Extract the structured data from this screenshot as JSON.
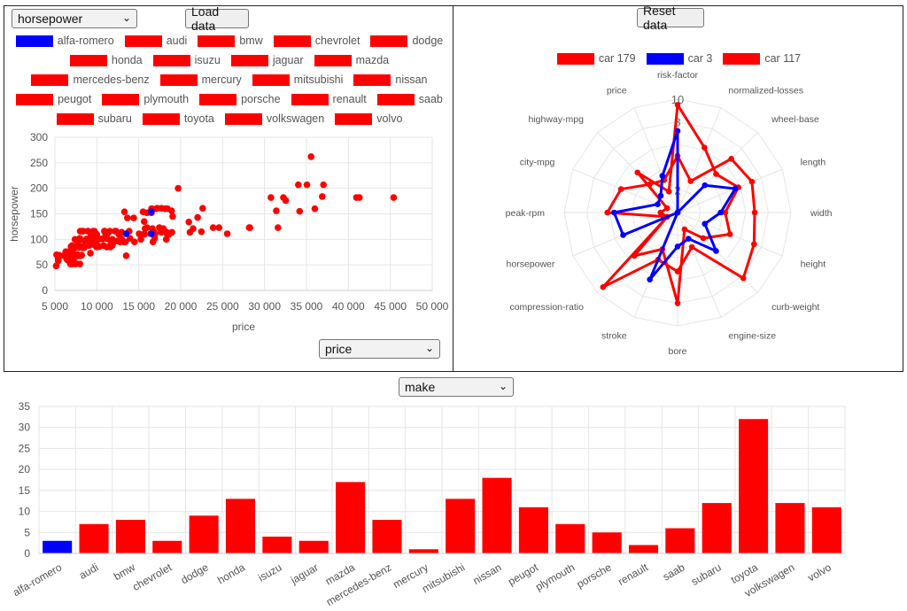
{
  "scatter_panel": {
    "y_select": "horsepower",
    "x_select": "price",
    "load_button": "Load data"
  },
  "radar_panel": {
    "reset_button": "Reset data"
  },
  "bar_panel": {
    "select": "make"
  },
  "colors": {
    "highlight": "#0000ff",
    "default": "#ff0000",
    "grid": "#e6e6e6"
  },
  "icons": {
    "dropdown": "chevron-down-icon"
  },
  "chart_data": [
    {
      "type": "scatter",
      "xlabel": "price",
      "ylabel": "horsepower",
      "xlim": [
        5000,
        50000
      ],
      "ylim": [
        0,
        300
      ],
      "xticks": [
        "5 000",
        "10 000",
        "15 000",
        "20 000",
        "25 000",
        "30 000",
        "35 000",
        "40 000",
        "45 000",
        "50 000"
      ],
      "yticks": [
        "0",
        "50",
        "100",
        "150",
        "200",
        "250",
        "300"
      ],
      "legend": [
        {
          "name": "alfa-romero",
          "color": "#0000ff"
        },
        {
          "name": "audi",
          "color": "#ff0000"
        },
        {
          "name": "bmw",
          "color": "#ff0000"
        },
        {
          "name": "chevrolet",
          "color": "#ff0000"
        },
        {
          "name": "dodge",
          "color": "#ff0000"
        },
        {
          "name": "honda",
          "color": "#ff0000"
        },
        {
          "name": "isuzu",
          "color": "#ff0000"
        },
        {
          "name": "jaguar",
          "color": "#ff0000"
        },
        {
          "name": "mazda",
          "color": "#ff0000"
        },
        {
          "name": "mercedes-benz",
          "color": "#ff0000"
        },
        {
          "name": "mercury",
          "color": "#ff0000"
        },
        {
          "name": "mitsubishi",
          "color": "#ff0000"
        },
        {
          "name": "nissan",
          "color": "#ff0000"
        },
        {
          "name": "peugot",
          "color": "#ff0000"
        },
        {
          "name": "plymouth",
          "color": "#ff0000"
        },
        {
          "name": "porsche",
          "color": "#ff0000"
        },
        {
          "name": "renault",
          "color": "#ff0000"
        },
        {
          "name": "saab",
          "color": "#ff0000"
        },
        {
          "name": "subaru",
          "color": "#ff0000"
        },
        {
          "name": "toyota",
          "color": "#ff0000"
        },
        {
          "name": "volkswagen",
          "color": "#ff0000"
        },
        {
          "name": "volvo",
          "color": "#ff0000"
        }
      ],
      "series": [
        {
          "name": "alfa-romero",
          "color": "#0000ff",
          "points": [
            [
              13495,
              111
            ],
            [
              16500,
              111
            ],
            [
              16500,
              154
            ]
          ]
        },
        {
          "name": "others",
          "color": "#ff0000",
          "points": [
            [
              5151,
              48
            ],
            [
              5195,
              70
            ],
            [
              5348,
              68
            ],
            [
              5389,
              62
            ],
            [
              5399,
              58
            ],
            [
              5499,
              69
            ],
            [
              5572,
              68
            ],
            [
              6095,
              68
            ],
            [
              6189,
              70
            ],
            [
              6229,
              68
            ],
            [
              6295,
              76
            ],
            [
              6338,
              70
            ],
            [
              6377,
              62
            ],
            [
              6479,
              60
            ],
            [
              6488,
              69
            ],
            [
              6529,
              70
            ],
            [
              6575,
              68
            ],
            [
              6649,
              60
            ],
            [
              6669,
              76
            ],
            [
              6692,
              69
            ],
            [
              6695,
              62
            ],
            [
              6785,
              70
            ],
            [
              6795,
              55
            ],
            [
              6849,
              52
            ],
            [
              6855,
              70
            ],
            [
              6918,
              86
            ],
            [
              6938,
              73
            ],
            [
              6989,
              58
            ],
            [
              7053,
              88
            ],
            [
              7099,
              52
            ],
            [
              7126,
              72
            ],
            [
              7129,
              55
            ],
            [
              7198,
              62
            ],
            [
              7295,
              70
            ],
            [
              7299,
              82
            ],
            [
              7349,
              55
            ],
            [
              7395,
              100
            ],
            [
              7463,
              69
            ],
            [
              7499,
              52
            ],
            [
              7609,
              88
            ],
            [
              7689,
              70
            ],
            [
              7738,
              90
            ],
            [
              7775,
              68
            ],
            [
              7788,
              97
            ],
            [
              7799,
              84
            ],
            [
              7895,
              85
            ],
            [
              7898,
              101
            ],
            [
              7957,
              102
            ],
            [
              7975,
              52
            ],
            [
              7995,
              68
            ],
            [
              8013,
              116
            ],
            [
              8058,
              100
            ],
            [
              8189,
              86
            ],
            [
              8195,
              69
            ],
            [
              8238,
              84
            ],
            [
              8249,
              116
            ],
            [
              8358,
              116
            ],
            [
              8449,
              84
            ],
            [
              8495,
              85
            ],
            [
              8499,
              84
            ],
            [
              8558,
              97
            ],
            [
              8778,
              101
            ],
            [
              8845,
              100
            ],
            [
              8921,
              116
            ],
            [
              8948,
              116
            ],
            [
              9095,
              88
            ],
            [
              9233,
              73
            ],
            [
              9258,
              97
            ],
            [
              9279,
              101
            ],
            [
              9298,
              110
            ],
            [
              9495,
              101
            ],
            [
              9538,
              90
            ],
            [
              9549,
              116
            ],
            [
              9639,
              97
            ],
            [
              9720,
              116
            ],
            [
              9895,
              100
            ],
            [
              9960,
              85
            ],
            [
              9980,
              90
            ],
            [
              9988,
              110
            ],
            [
              9989,
              101
            ],
            [
              10198,
              86
            ],
            [
              10245,
              101
            ],
            [
              10295,
              86
            ],
            [
              10345,
              101
            ],
            [
              10595,
              101
            ],
            [
              10698,
              101
            ],
            [
              10795,
              88
            ],
            [
              10898,
              116
            ],
            [
              10945,
              116
            ],
            [
              11048,
              110
            ],
            [
              11199,
              85
            ],
            [
              11245,
              101
            ],
            [
              11259,
              111
            ],
            [
              11549,
              116
            ],
            [
              11595,
              85
            ],
            [
              11694,
              92
            ],
            [
              11845,
              88
            ],
            [
              11850,
              100
            ],
            [
              11900,
              92
            ],
            [
              12170,
              116
            ],
            [
              12290,
              116
            ],
            [
              12440,
              97
            ],
            [
              12629,
              110
            ],
            [
              12764,
              95
            ],
            [
              12940,
              114
            ],
            [
              12945,
              101
            ],
            [
              12964,
              114
            ],
            [
              13200,
              95
            ],
            [
              13295,
              154
            ],
            [
              13415,
              95
            ],
            [
              13499,
              68
            ],
            [
              13645,
              142
            ],
            [
              13860,
              116
            ],
            [
              13950,
              102
            ],
            [
              14399,
              142
            ],
            [
              14489,
              95
            ],
            [
              15040,
              111
            ],
            [
              15250,
              100
            ],
            [
              15510,
              154
            ],
            [
              15580,
              110
            ],
            [
              15645,
              135
            ],
            [
              15690,
              110
            ],
            [
              15750,
              121
            ],
            [
              15985,
              123
            ],
            [
              15998,
              152
            ],
            [
              16430,
              111
            ],
            [
              16503,
              152
            ],
            [
              16515,
              160
            ],
            [
              16558,
              160
            ],
            [
              16630,
              121
            ],
            [
              16695,
              95
            ],
            [
              16845,
              114
            ],
            [
              16900,
              102
            ],
            [
              16925,
              110
            ],
            [
              17075,
              160
            ],
            [
              17199,
              161
            ],
            [
              17450,
              123
            ],
            [
              17669,
              114
            ],
            [
              17710,
              161
            ],
            [
              17950,
              121
            ],
            [
              18150,
              160
            ],
            [
              18280,
              100
            ],
            [
              18344,
              114
            ],
            [
              18399,
              110
            ],
            [
              18420,
              160
            ],
            [
              18620,
              110
            ],
            [
              18920,
              156
            ],
            [
              18950,
              114
            ],
            [
              19045,
              145
            ],
            [
              19699,
              200
            ],
            [
              20970,
              134
            ],
            [
              21105,
              114
            ],
            [
              21485,
              121
            ],
            [
              22018,
              143
            ],
            [
              22470,
              115
            ],
            [
              22625,
              161
            ],
            [
              23875,
              123
            ],
            [
              24565,
              123
            ],
            [
              25552,
              111
            ],
            [
              28176,
              123
            ],
            [
              28248,
              123
            ],
            [
              30760,
              182
            ],
            [
              31400,
              156
            ],
            [
              31600,
              123
            ],
            [
              32250,
              182
            ],
            [
              32528,
              176
            ],
            [
              34028,
              207
            ],
            [
              34184,
              155
            ],
            [
              35056,
              207
            ],
            [
              35550,
              262
            ],
            [
              36000,
              160
            ],
            [
              36880,
              184
            ],
            [
              37028,
              207
            ],
            [
              40960,
              182
            ],
            [
              41315,
              182
            ],
            [
              45400,
              182
            ]
          ]
        }
      ]
    },
    {
      "type": "radar",
      "axes": [
        "risk-factor",
        "normalized-losses",
        "wheel-base",
        "length",
        "width",
        "height",
        "curb-weight",
        "engine-size",
        "bore",
        "stroke",
        "compression-ratio",
        "horsepower",
        "peak-rpm",
        "city-mpg",
        "highway-mpg",
        "price"
      ],
      "rlim": [
        0,
        10
      ],
      "rticks": [
        "2",
        "8",
        "10"
      ],
      "series": [
        {
          "name": "car 179",
          "color": "#ff0000",
          "values": [
            9.5,
            6.2,
            4.8,
            5.8,
            4.2,
            5.0,
            3.2,
            1.6,
            8.0,
            3.5,
            5.4,
            1.0,
            1.5,
            1.0,
            5.0,
            2.0
          ]
        },
        {
          "name": "car 3",
          "color": "#0000ff",
          "values": [
            7.2,
            0.0,
            3.4,
            5.5,
            3.8,
            2.6,
            4.8,
            2.5,
            3.0,
            6.4,
            0.0,
            5.2,
            5.6,
            1.9,
            2.1,
            3.5
          ]
        },
        {
          "name": "car 117",
          "color": "#ff0000",
          "values": [
            5.0,
            3.0,
            6.7,
            7.1,
            6.8,
            7.3,
            8.2,
            3.3,
            5.2,
            4.5,
            9.3,
            1.0,
            6.2,
            5.4,
            3.5,
            3.1
          ]
        }
      ]
    },
    {
      "type": "bar",
      "ylim": [
        0,
        35
      ],
      "yticks": [
        "0",
        "5",
        "10",
        "15",
        "20",
        "25",
        "30",
        "35"
      ],
      "categories": [
        "alfa-romero",
        "audi",
        "bmw",
        "chevrolet",
        "dodge",
        "honda",
        "isuzu",
        "jaguar",
        "mazda",
        "mercedes-benz",
        "mercury",
        "mitsubishi",
        "nissan",
        "peugot",
        "plymouth",
        "porsche",
        "renault",
        "saab",
        "subaru",
        "toyota",
        "volkswagen",
        "volvo"
      ],
      "values": [
        3,
        7,
        8,
        3,
        9,
        13,
        4,
        3,
        17,
        8,
        1,
        13,
        18,
        11,
        7,
        5,
        2,
        6,
        12,
        32,
        12,
        11
      ],
      "colors": [
        "#0000ff",
        "#ff0000",
        "#ff0000",
        "#ff0000",
        "#ff0000",
        "#ff0000",
        "#ff0000",
        "#ff0000",
        "#ff0000",
        "#ff0000",
        "#ff0000",
        "#ff0000",
        "#ff0000",
        "#ff0000",
        "#ff0000",
        "#ff0000",
        "#ff0000",
        "#ff0000",
        "#ff0000",
        "#ff0000",
        "#ff0000",
        "#ff0000"
      ]
    }
  ]
}
